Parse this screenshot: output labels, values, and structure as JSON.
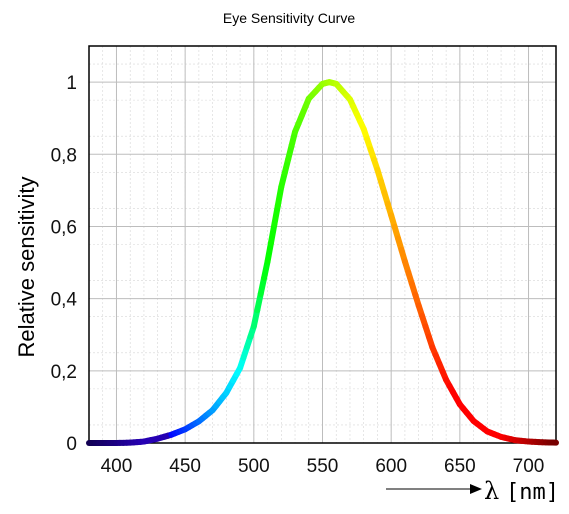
{
  "chart_data": {
    "type": "line",
    "title": "Eye Sensitivity Curve",
    "xlabel": "λ",
    "xlabel_unit": "[nm]",
    "ylabel": "Relative sensitivity",
    "xlim": [
      380,
      720
    ],
    "ylim": [
      0,
      1.1
    ],
    "x_ticks": [
      400,
      450,
      500,
      550,
      600,
      650,
      700
    ],
    "x_tick_labels": [
      "400",
      "450",
      "500",
      "550",
      "600",
      "650",
      "700"
    ],
    "y_ticks": [
      0,
      0.2,
      0.4,
      0.6,
      0.8,
      1
    ],
    "y_tick_labels": [
      "0",
      "0,2",
      "0,4",
      "0,6",
      "0,8",
      "1"
    ],
    "grid": true,
    "series": [
      {
        "x": [
          380,
          390,
          400,
          410,
          420,
          430,
          440,
          450,
          460,
          470,
          480,
          490,
          500,
          510,
          520,
          530,
          540,
          550,
          555,
          560,
          570,
          580,
          590,
          600,
          610,
          620,
          630,
          640,
          650,
          660,
          670,
          680,
          690,
          700,
          710,
          720
        ],
        "values": [
          0.0,
          0.0,
          0.0,
          0.001,
          0.004,
          0.012,
          0.023,
          0.038,
          0.06,
          0.091,
          0.139,
          0.208,
          0.323,
          0.503,
          0.71,
          0.862,
          0.954,
          0.995,
          1.0,
          0.995,
          0.952,
          0.87,
          0.757,
          0.631,
          0.503,
          0.381,
          0.265,
          0.175,
          0.107,
          0.061,
          0.032,
          0.017,
          0.008,
          0.004,
          0.002,
          0.001
        ]
      }
    ]
  }
}
